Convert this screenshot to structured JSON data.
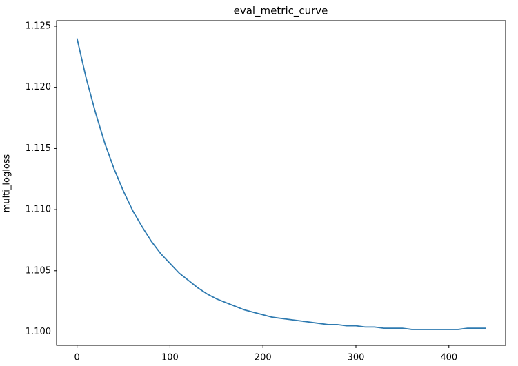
{
  "chart_data": {
    "type": "line",
    "title": "eval_metric_curve",
    "y_label": "multi_logloss",
    "x": [
      0,
      10,
      20,
      30,
      40,
      50,
      60,
      70,
      80,
      90,
      100,
      110,
      120,
      130,
      140,
      150,
      160,
      170,
      180,
      190,
      200,
      210,
      220,
      230,
      240,
      250,
      260,
      270,
      280,
      290,
      300,
      310,
      320,
      330,
      340,
      350,
      360,
      370,
      380,
      390,
      400,
      410,
      420,
      430,
      440
    ],
    "values": [
      1.124,
      1.1207,
      1.1179,
      1.1154,
      1.1133,
      1.1115,
      1.1099,
      1.1086,
      1.1074,
      1.1064,
      1.1056,
      1.1048,
      1.1042,
      1.1036,
      1.1031,
      1.1027,
      1.1024,
      1.1021,
      1.1018,
      1.1016,
      1.1014,
      1.1012,
      1.1011,
      1.101,
      1.1009,
      1.1008,
      1.1007,
      1.1006,
      1.1006,
      1.1005,
      1.1005,
      1.1004,
      1.1004,
      1.1003,
      1.1003,
      1.1003,
      1.1002,
      1.1002,
      1.1002,
      1.1002,
      1.1002,
      1.1002,
      1.1003,
      1.1003,
      1.1003
    ],
    "color": "#2e7ab0",
    "xlim": [
      -22,
      461
    ],
    "ylim": [
      1.0989,
      1.12545
    ],
    "xticks": [
      0,
      100,
      200,
      300,
      400
    ],
    "yticks": [
      {
        "value": 1.1,
        "label": "1.100"
      },
      1.105,
      {
        "value": 1.11,
        "label": "1.110"
      },
      1.115,
      {
        "value": 1.12,
        "label": "1.120"
      },
      1.125
    ]
  }
}
